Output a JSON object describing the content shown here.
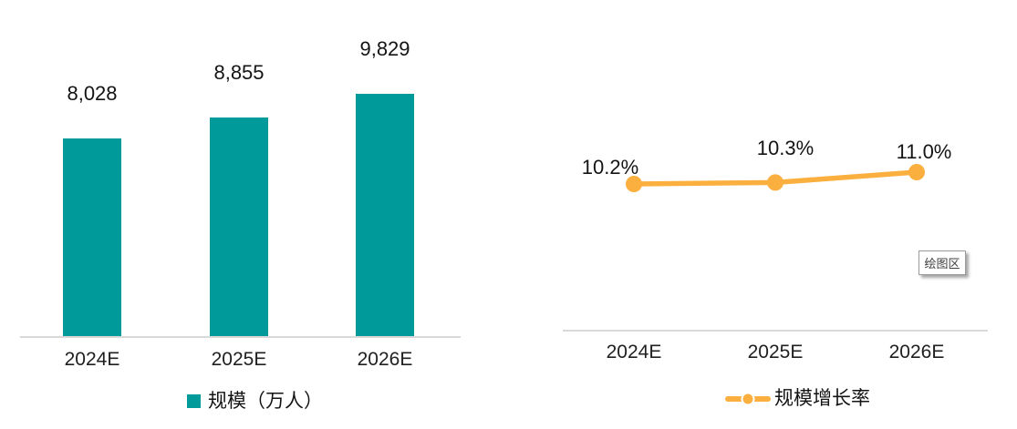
{
  "figure": {
    "background": "#ffffff",
    "axis_line_color": "#D9D9D9"
  },
  "chart_data": [
    {
      "type": "bar",
      "title": "",
      "categories": [
        "2024E",
        "2025E",
        "2026E"
      ],
      "values": [
        8028,
        8855,
        9829
      ],
      "value_labels": [
        "8,028",
        "8,855",
        "9,829"
      ],
      "legend_label": "规模（万人）",
      "legend_position": "bottom",
      "bar_color": "#009A9A",
      "xlabel": "",
      "ylabel": "",
      "ylim": [
        0,
        9829
      ],
      "grid": false,
      "y_axis_visible": false
    },
    {
      "type": "line",
      "title": "",
      "categories": [
        "2024E",
        "2025E",
        "2026E"
      ],
      "values": [
        10.2,
        10.3,
        11.0
      ],
      "value_labels": [
        "10.2%",
        "10.3%",
        "11.0%"
      ],
      "legend_label": "规模增长率",
      "legend_position": "bottom",
      "line_color": "#FAAF3E",
      "marker": "circle",
      "plot_area_label": "绘图区",
      "xlabel": "",
      "ylabel": "",
      "grid": false,
      "y_axis_visible": false
    }
  ]
}
